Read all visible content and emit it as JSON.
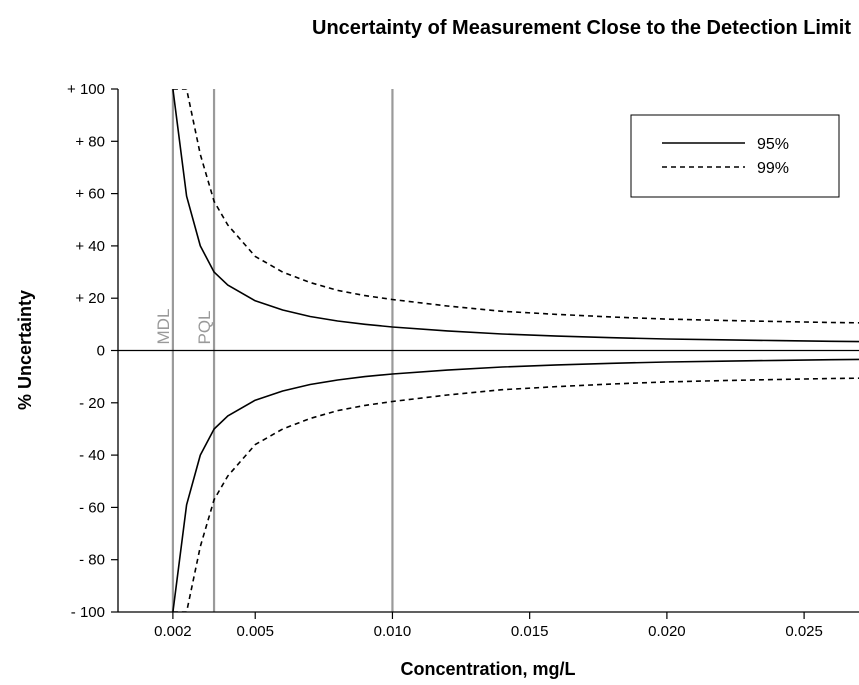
{
  "chart_data": {
    "type": "line",
    "title": "Uncertainty of Measurement Close to the Detection Limit",
    "xlabel": "Concentration, mg/L",
    "ylabel": "% Uncertainty",
    "x_ticks": [
      {
        "value": 0.002,
        "label": "0.002"
      },
      {
        "value": 0.005,
        "label": "0.005"
      },
      {
        "value": 0.01,
        "label": "0.010"
      },
      {
        "value": 0.015,
        "label": "0.015"
      },
      {
        "value": 0.02,
        "label": "0.020"
      },
      {
        "value": 0.025,
        "label": "0.025"
      }
    ],
    "y_ticks": [
      {
        "value": 100,
        "label": "+ 100"
      },
      {
        "value": 80,
        "label": "+ 80"
      },
      {
        "value": 60,
        "label": "+ 60"
      },
      {
        "value": 40,
        "label": "+ 40"
      },
      {
        "value": 20,
        "label": "+ 20"
      },
      {
        "value": 0,
        "label": "0"
      },
      {
        "value": -20,
        "label": "- 20"
      },
      {
        "value": -40,
        "label": "- 40"
      },
      {
        "value": -60,
        "label": "- 60"
      },
      {
        "value": -80,
        "label": "- 80"
      },
      {
        "value": -100,
        "label": "- 100"
      }
    ],
    "xlim": [
      0,
      0.027
    ],
    "ylim": [
      -100,
      100
    ],
    "grid": false,
    "legend_position": "top-right",
    "reference_lines": [
      {
        "x": 0.002,
        "label": "MDL"
      },
      {
        "x": 0.0035,
        "label": "PQL"
      },
      {
        "x": 0.01,
        "label": ""
      }
    ],
    "series": [
      {
        "name": "95%",
        "line_style": "solid",
        "symmetric": true,
        "x": [
          0.002,
          0.0025,
          0.003,
          0.0035,
          0.004,
          0.005,
          0.006,
          0.007,
          0.008,
          0.009,
          0.01,
          0.012,
          0.014,
          0.016,
          0.018,
          0.02,
          0.022,
          0.024,
          0.026,
          0.027
        ],
        "y": [
          100,
          59,
          40,
          30,
          25,
          19,
          15.5,
          13,
          11.3,
          10,
          9,
          7.5,
          6.3,
          5.5,
          4.9,
          4.4,
          4.1,
          3.8,
          3.5,
          3.4
        ]
      },
      {
        "name": "99%",
        "line_style": "dashed",
        "symmetric": true,
        "x": [
          0.002,
          0.0025,
          0.003,
          0.0035,
          0.004,
          0.005,
          0.006,
          0.007,
          0.008,
          0.009,
          0.01,
          0.012,
          0.014,
          0.016,
          0.018,
          0.02,
          0.022,
          0.024,
          0.026,
          0.027
        ],
        "y": [
          100,
          100,
          75,
          57,
          48,
          36,
          30,
          26,
          23,
          21,
          19.5,
          17,
          15,
          13.8,
          12.8,
          12,
          11.5,
          11.1,
          10.7,
          10.6
        ]
      }
    ]
  }
}
